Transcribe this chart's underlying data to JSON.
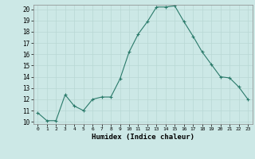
{
  "x": [
    0,
    1,
    2,
    3,
    4,
    5,
    6,
    7,
    8,
    9,
    10,
    11,
    12,
    13,
    14,
    15,
    16,
    17,
    18,
    19,
    20,
    21,
    22,
    23
  ],
  "y": [
    10.8,
    10.1,
    10.1,
    12.4,
    11.4,
    11.0,
    12.0,
    12.2,
    12.2,
    13.8,
    16.2,
    17.8,
    18.9,
    20.2,
    20.2,
    20.3,
    18.9,
    17.6,
    16.2,
    15.1,
    14.0,
    13.9,
    13.1,
    12.0
  ],
  "xlabel": "Humidex (Indice chaleur)",
  "yticks": [
    10,
    11,
    12,
    13,
    14,
    15,
    16,
    17,
    18,
    19,
    20
  ],
  "xticks": [
    0,
    1,
    2,
    3,
    4,
    5,
    6,
    7,
    8,
    9,
    10,
    11,
    12,
    13,
    14,
    15,
    16,
    17,
    18,
    19,
    20,
    21,
    22,
    23
  ],
  "line_color": "#2a7a6a",
  "marker": "+",
  "bg_color": "#cce8e6",
  "grid_color": "#b8d8d4",
  "axis_bg": "#cce8e6"
}
